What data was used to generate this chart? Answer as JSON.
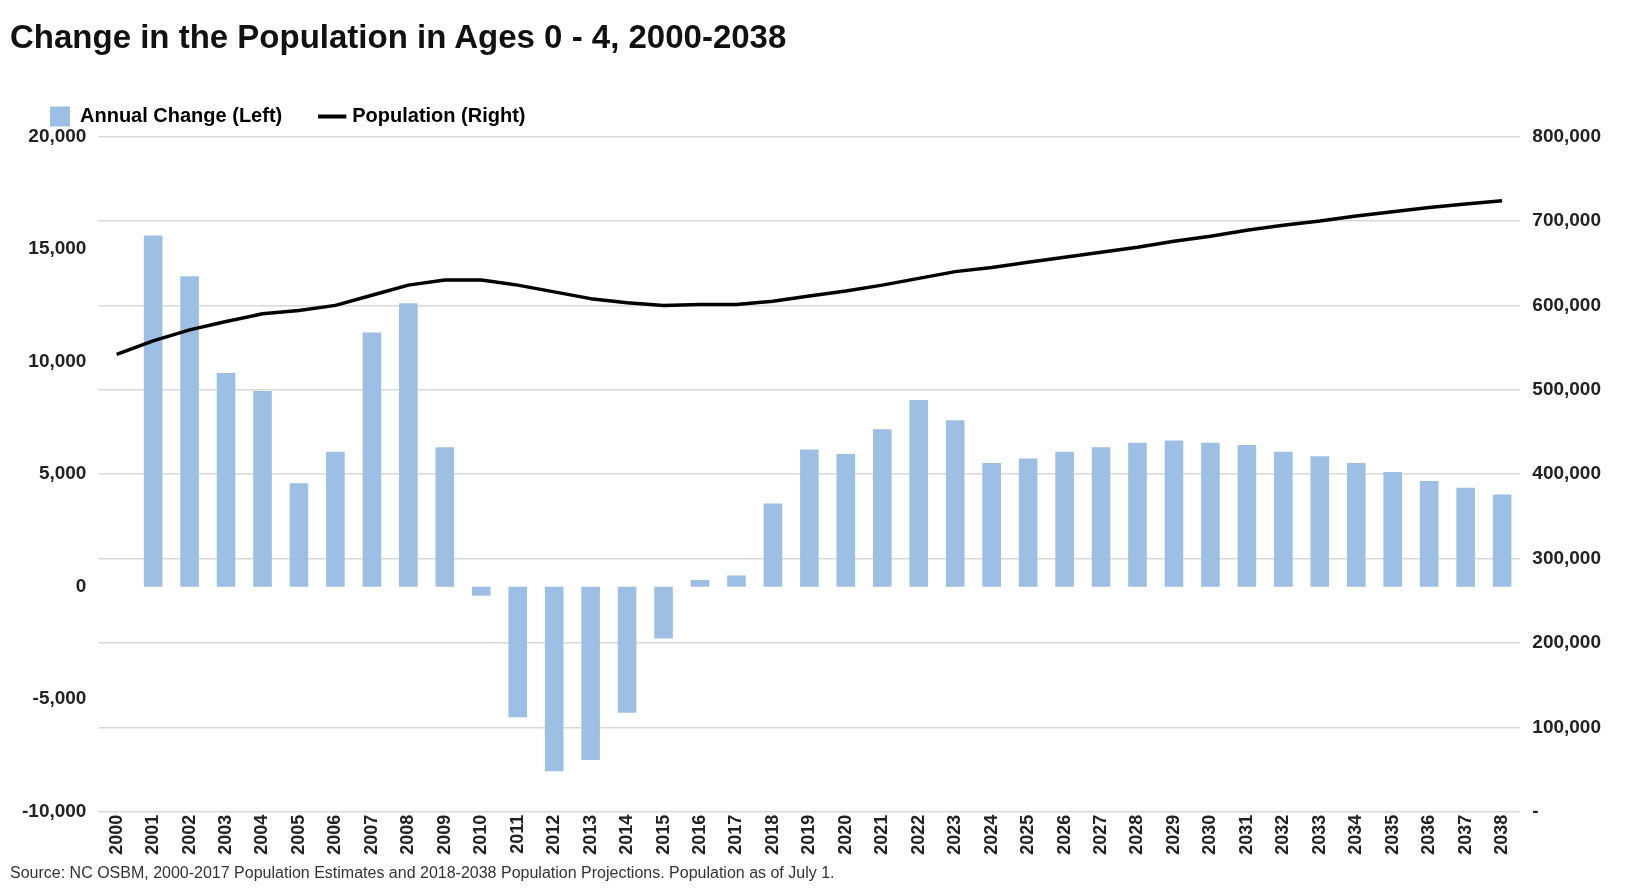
{
  "chart_data": {
    "type": "bar",
    "title": "Change in the Population in Ages 0 - 4, 2000-2038",
    "categories": [
      "2000",
      "2001",
      "2002",
      "2003",
      "2004",
      "2005",
      "2006",
      "2007",
      "2008",
      "2009",
      "2010",
      "2011",
      "2012",
      "2013",
      "2014",
      "2015",
      "2016",
      "2017",
      "2018",
      "2019",
      "2020",
      "2021",
      "2022",
      "2023",
      "2024",
      "2025",
      "2026",
      "2027",
      "2028",
      "2029",
      "2030",
      "2031",
      "2032",
      "2033",
      "2034",
      "2035",
      "2036",
      "2037",
      "2038"
    ],
    "series": [
      {
        "name": "Annual Change (Left)",
        "color": "#9dbfe3",
        "values": [
          null,
          15600,
          13800,
          9500,
          8700,
          4600,
          6000,
          11300,
          12600,
          6200,
          -400,
          -5800,
          -8200,
          -7700,
          -5600,
          -2300,
          300,
          500,
          3700,
          6100,
          5900,
          7000,
          8300,
          7400,
          5500,
          5700,
          6000,
          6200,
          6400,
          6500,
          6400,
          6300,
          6000,
          5800,
          5500,
          5100,
          4700,
          4400,
          4100
        ]
      },
      {
        "name": "Population (Right)",
        "type": "line",
        "axis": "y2",
        "color": "#000000",
        "values": [
          542000,
          558000,
          571000,
          581000,
          590000,
          594000,
          600000,
          612000,
          624000,
          630000,
          630000,
          624000,
          616000,
          608000,
          603000,
          600000,
          601000,
          601000,
          605000,
          611000,
          617000,
          624000,
          632000,
          640000,
          645000,
          651000,
          657000,
          663000,
          669000,
          676000,
          682000,
          689000,
          695000,
          700000,
          706000,
          711000,
          716000,
          720000,
          724000
        ]
      }
    ],
    "ylim": [
      -10000,
      20000
    ],
    "yticks": [
      {
        "value": -10000,
        "label": "-10,000"
      },
      {
        "value": -5000,
        "label": "-5,000"
      },
      0,
      {
        "value": 5000,
        "label": "5,000"
      },
      {
        "value": 10000,
        "label": "10,000"
      },
      {
        "value": 15000,
        "label": "15,000"
      },
      {
        "value": 20000,
        "label": "20,000"
      }
    ],
    "y2lim": [
      0,
      800000
    ],
    "y2ticks": [
      {
        "value": 0,
        "label": "-"
      },
      {
        "value": 100000,
        "label": "100,000"
      },
      {
        "value": 200000,
        "label": "200,000"
      },
      {
        "value": 300000,
        "label": "300,000"
      },
      {
        "value": 400000,
        "label": "400,000"
      },
      {
        "value": 500000,
        "label": "500,000"
      },
      {
        "value": 600000,
        "label": "600,000"
      },
      {
        "value": 700000,
        "label": "700,000"
      },
      {
        "value": 800000,
        "label": "800,000"
      }
    ],
    "grid": "y",
    "legend": "top left",
    "marker": "none",
    "line_style": "solid",
    "annotations": [
      "Source: NC OSBM, 2000-2017 Population Estimates and 2018-2038 Population Projections. Population as of July 1."
    ]
  }
}
